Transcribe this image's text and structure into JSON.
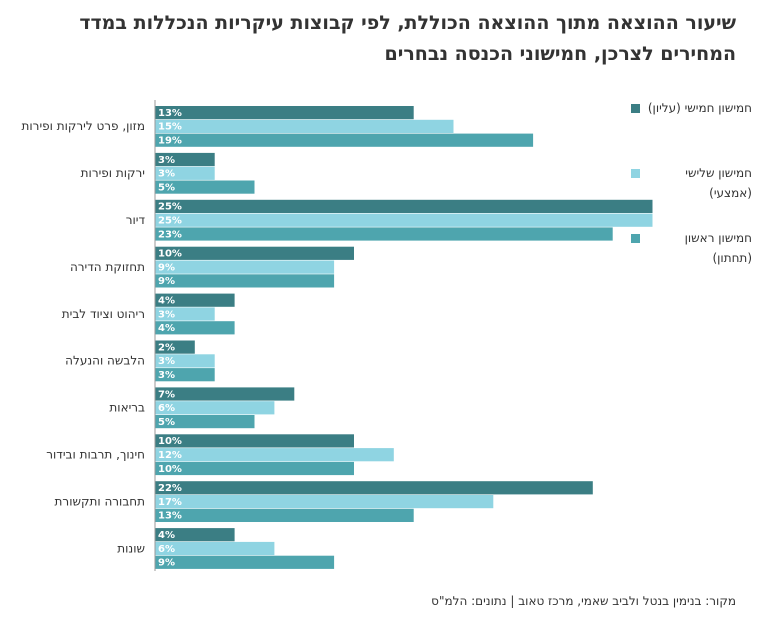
{
  "chart_data": {
    "type": "bar",
    "orientation": "horizontal",
    "title": "שיעור ההוצאה מתוך ההוצאה הכוללת, לפי קבוצות עיקריות הנכללות במדד המחירים לצרכן, חמישוני הכנסה נבחרים",
    "source": "מקור: בנימין בנטל ולביב שאמי, מרכז טאוב | נתונים: הלמ\"ס",
    "categories": [
      "מזון, פרט לירקות ופירות",
      "ירקות ופירות",
      "דיור",
      "תחזוקת הדירה",
      "ריהוט וציוד לבית",
      "הלבשה והנעלה",
      "בריאות",
      "חינוך, תרבות ובידור",
      "תחבורה ותקשורת",
      "שונות"
    ],
    "series": [
      {
        "name": "חמישון חמישי (עליון)",
        "color": "#3b7e84",
        "values": [
          13,
          3,
          25,
          10,
          4,
          2,
          7,
          10,
          22,
          4
        ],
        "value_labels": [
          "13%",
          "3%",
          "25%",
          "10%",
          "4%",
          "2%",
          "7%",
          "10%",
          "22%",
          "4%"
        ]
      },
      {
        "name": "חמישון שלישי (אמצעי)",
        "color": "#8fd4e2",
        "values": [
          15,
          3,
          25,
          9,
          3,
          3,
          6,
          12,
          17,
          6
        ],
        "value_labels": [
          "15%",
          "3%",
          "25%",
          "9%",
          "3%",
          "3%",
          "6%",
          "12%",
          "17%",
          "6%"
        ]
      },
      {
        "name": "חמישון ראשון (תחתון)",
        "color": "#4ea5ae",
        "values": [
          19,
          5,
          23,
          9,
          4,
          3,
          5,
          10,
          13,
          9
        ],
        "value_labels": [
          "19%",
          "5%",
          "23%",
          "9%",
          "4%",
          "3%",
          "5%",
          "10%",
          "13%",
          "9%"
        ]
      }
    ]
  }
}
